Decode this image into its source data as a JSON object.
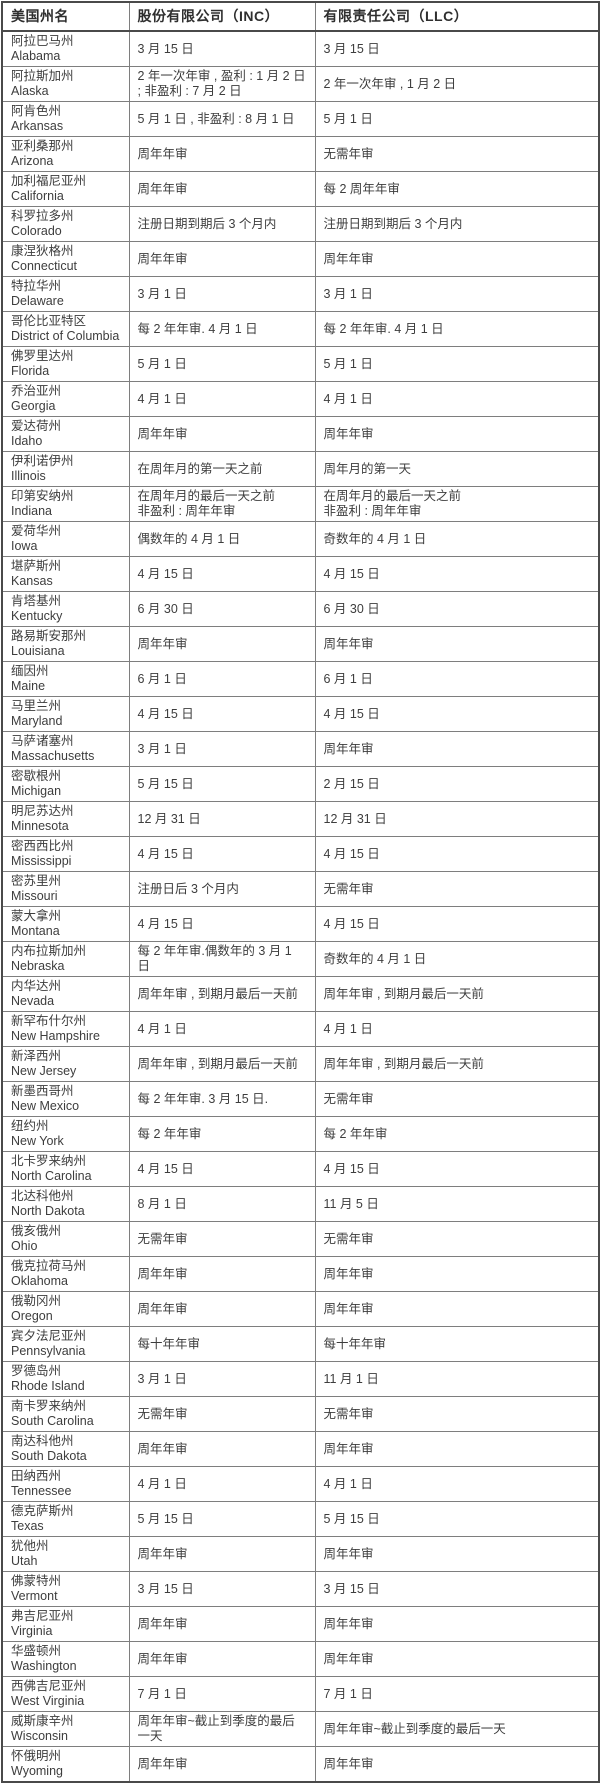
{
  "table": {
    "headers": {
      "state": "美国州名",
      "inc": "股份有限公司（INC）",
      "llc": "有限责任公司（LLC）"
    },
    "rows": [
      {
        "cn": "阿拉巴马州",
        "en": "Alabama",
        "inc": "3 月 15 日",
        "llc": "3 月 15 日"
      },
      {
        "cn": "阿拉斯加州",
        "en": "Alaska",
        "inc": "2 年一次年审 , 盈利 : 1 月 2 日 ; 非盈利 : 7 月 2 日",
        "llc": "2 年一次年审 , 1 月 2 日"
      },
      {
        "cn": "阿肯色州",
        "en": "Arkansas",
        "inc": "5 月 1 日 , 非盈利 : 8 月 1 日",
        "llc": "5 月 1 日"
      },
      {
        "cn": "亚利桑那州",
        "en": "Arizona",
        "inc": "周年年审",
        "llc": "无需年审"
      },
      {
        "cn": "加利福尼亚州",
        "en": "California",
        "inc": "周年年审",
        "llc": "每 2 周年年审"
      },
      {
        "cn": "科罗拉多州",
        "en": "Colorado",
        "inc": "注册日期到期后 3 个月内",
        "llc": "注册日期到期后 3 个月内"
      },
      {
        "cn": "康涅狄格州",
        "en": "Connecticut",
        "inc": "周年年审",
        "llc": "周年年审"
      },
      {
        "cn": "特拉华州",
        "en": "Delaware",
        "inc": "3 月 1 日",
        "llc": "3 月 1 日"
      },
      {
        "cn": "哥伦比亚特区",
        "en": "District of Columbia",
        "inc": "每 2 年年审. 4 月 1 日",
        "llc": "每 2 年年审. 4 月 1 日"
      },
      {
        "cn": "佛罗里达州",
        "en": "Florida",
        "inc": "5 月 1 日",
        "llc": "5 月 1 日"
      },
      {
        "cn": "乔治亚州",
        "en": "Georgia",
        "inc": "4 月 1 日",
        "llc": "4 月 1 日"
      },
      {
        "cn": "爱达荷州",
        "en": "Idaho",
        "inc": "周年年审",
        "llc": "周年年审"
      },
      {
        "cn": "伊利诺伊州",
        "en": "Illinois",
        "inc": "在周年月的第一天之前",
        "llc": "周年月的第一天"
      },
      {
        "cn": "印第安纳州",
        "en": "Indiana",
        "inc": "在周年月的最后一天之前\n非盈利 : 周年年审",
        "llc": "在周年月的最后一天之前\n非盈利 : 周年年审"
      },
      {
        "cn": "爱荷华州",
        "en": "Iowa",
        "inc": "偶数年的 4 月 1 日",
        "llc": "奇数年的 4 月 1 日"
      },
      {
        "cn": "堪萨斯州",
        "en": "Kansas",
        "inc": "4 月 15 日",
        "llc": "4 月 15 日"
      },
      {
        "cn": "肯塔基州",
        "en": "Kentucky",
        "inc": "6 月 30 日",
        "llc": "6 月 30 日"
      },
      {
        "cn": "路易斯安那州",
        "en": "Louisiana",
        "inc": "周年年审",
        "llc": "周年年审"
      },
      {
        "cn": "缅因州",
        "en": "Maine",
        "inc": "6 月 1 日",
        "llc": "6 月 1 日"
      },
      {
        "cn": "马里兰州",
        "en": "Maryland",
        "inc": "4 月 15 日",
        "llc": "4 月 15 日"
      },
      {
        "cn": "马萨诸塞州",
        "en": "Massachusetts",
        "inc": "3 月 1 日",
        "llc": "周年年审"
      },
      {
        "cn": "密歇根州",
        "en": "Michigan",
        "inc": "5 月 15 日",
        "llc": "2 月 15 日"
      },
      {
        "cn": "明尼苏达州",
        "en": "Minnesota",
        "inc": "12 月 31 日",
        "llc": "12 月 31 日"
      },
      {
        "cn": "密西西比州",
        "en": "Mississippi",
        "inc": "4 月 15 日",
        "llc": "4 月 15 日"
      },
      {
        "cn": "密苏里州",
        "en": "Missouri",
        "inc": "注册日后 3 个月内",
        "llc": "无需年审"
      },
      {
        "cn": "蒙大拿州",
        "en": "Montana",
        "inc": "4 月 15 日",
        "llc": "4 月 15 日"
      },
      {
        "cn": "内布拉斯加州",
        "en": "Nebraska",
        "inc": "每 2 年年审.偶数年的 3 月 1 日",
        "llc": "奇数年的 4 月 1 日"
      },
      {
        "cn": "内华达州",
        "en": "Nevada",
        "inc": "周年年审 , 到期月最后一天前",
        "llc": "周年年审 , 到期月最后一天前"
      },
      {
        "cn": "新罕布什尔州",
        "en": "New Hampshire",
        "inc": "4 月 1 日",
        "llc": "4 月 1 日"
      },
      {
        "cn": "新泽西州",
        "en": "New Jersey",
        "inc": "周年年审 , 到期月最后一天前",
        "llc": "周年年审 , 到期月最后一天前"
      },
      {
        "cn": "新墨西哥州",
        "en": "New Mexico",
        "inc": "每 2 年年审. 3 月 15 日.",
        "llc": "无需年审"
      },
      {
        "cn": "纽约州",
        "en": "New York",
        "inc": "每 2 年年审",
        "llc": "每 2 年年审"
      },
      {
        "cn": "北卡罗来纳州",
        "en": "North Carolina",
        "inc": "4 月 15 日",
        "llc": "4 月 15 日"
      },
      {
        "cn": "北达科他州",
        "en": "North Dakota",
        "inc": "8 月 1 日",
        "llc": "11 月 5 日"
      },
      {
        "cn": "俄亥俄州",
        "en": "Ohio",
        "inc": "无需年审",
        "llc": "无需年审"
      },
      {
        "cn": "俄克拉荷马州",
        "en": "Oklahoma",
        "inc": "周年年审",
        "llc": "周年年审"
      },
      {
        "cn": "俄勒冈州",
        "en": "Oregon",
        "inc": "周年年审",
        "llc": "周年年审"
      },
      {
        "cn": "宾夕法尼亚州",
        "en": "Pennsylvania",
        "inc": "每十年年审",
        "llc": "每十年年审"
      },
      {
        "cn": "罗德岛州",
        "en": "Rhode Island",
        "inc": "3 月 1 日",
        "llc": "11 月 1 日"
      },
      {
        "cn": "南卡罗来纳州",
        "en": "South Carolina",
        "inc": "无需年审",
        "llc": "无需年审"
      },
      {
        "cn": "南达科他州",
        "en": "South Dakota",
        "inc": "周年年审",
        "llc": "周年年审"
      },
      {
        "cn": "田纳西州",
        "en": "Tennessee",
        "inc": "4 月 1 日",
        "llc": "4 月 1 日"
      },
      {
        "cn": "德克萨斯州",
        "en": "Texas",
        "inc": "5 月 15 日",
        "llc": "5 月 15 日"
      },
      {
        "cn": "犹他州",
        "en": "Utah",
        "inc": "周年年审",
        "llc": "周年年审"
      },
      {
        "cn": "佛蒙特州",
        "en": "Vermont",
        "inc": "3 月 15 日",
        "llc": "3 月 15 日"
      },
      {
        "cn": "弗吉尼亚州",
        "en": "Virginia",
        "inc": "周年年审",
        "llc": "周年年审"
      },
      {
        "cn": "华盛顿州",
        "en": "Washington",
        "inc": "周年年审",
        "llc": "周年年审"
      },
      {
        "cn": "西佛吉尼亚州",
        "en": "West Virginia",
        "inc": "7 月 1 日",
        "llc": "7 月 1 日"
      },
      {
        "cn": "威斯康辛州",
        "en": "Wisconsin",
        "inc": "周年年审~截止到季度的最后一天",
        "llc": "周年年审~截止到季度的最后一天"
      },
      {
        "cn": "怀俄明州",
        "en": "Wyoming",
        "inc": "周年年审",
        "llc": "周年年审"
      }
    ],
    "colors": {
      "border_outer": "#4a4a4a",
      "border_inner": "#7e7e7e",
      "text": "#3d3d3d",
      "background": "#ffffff"
    }
  }
}
